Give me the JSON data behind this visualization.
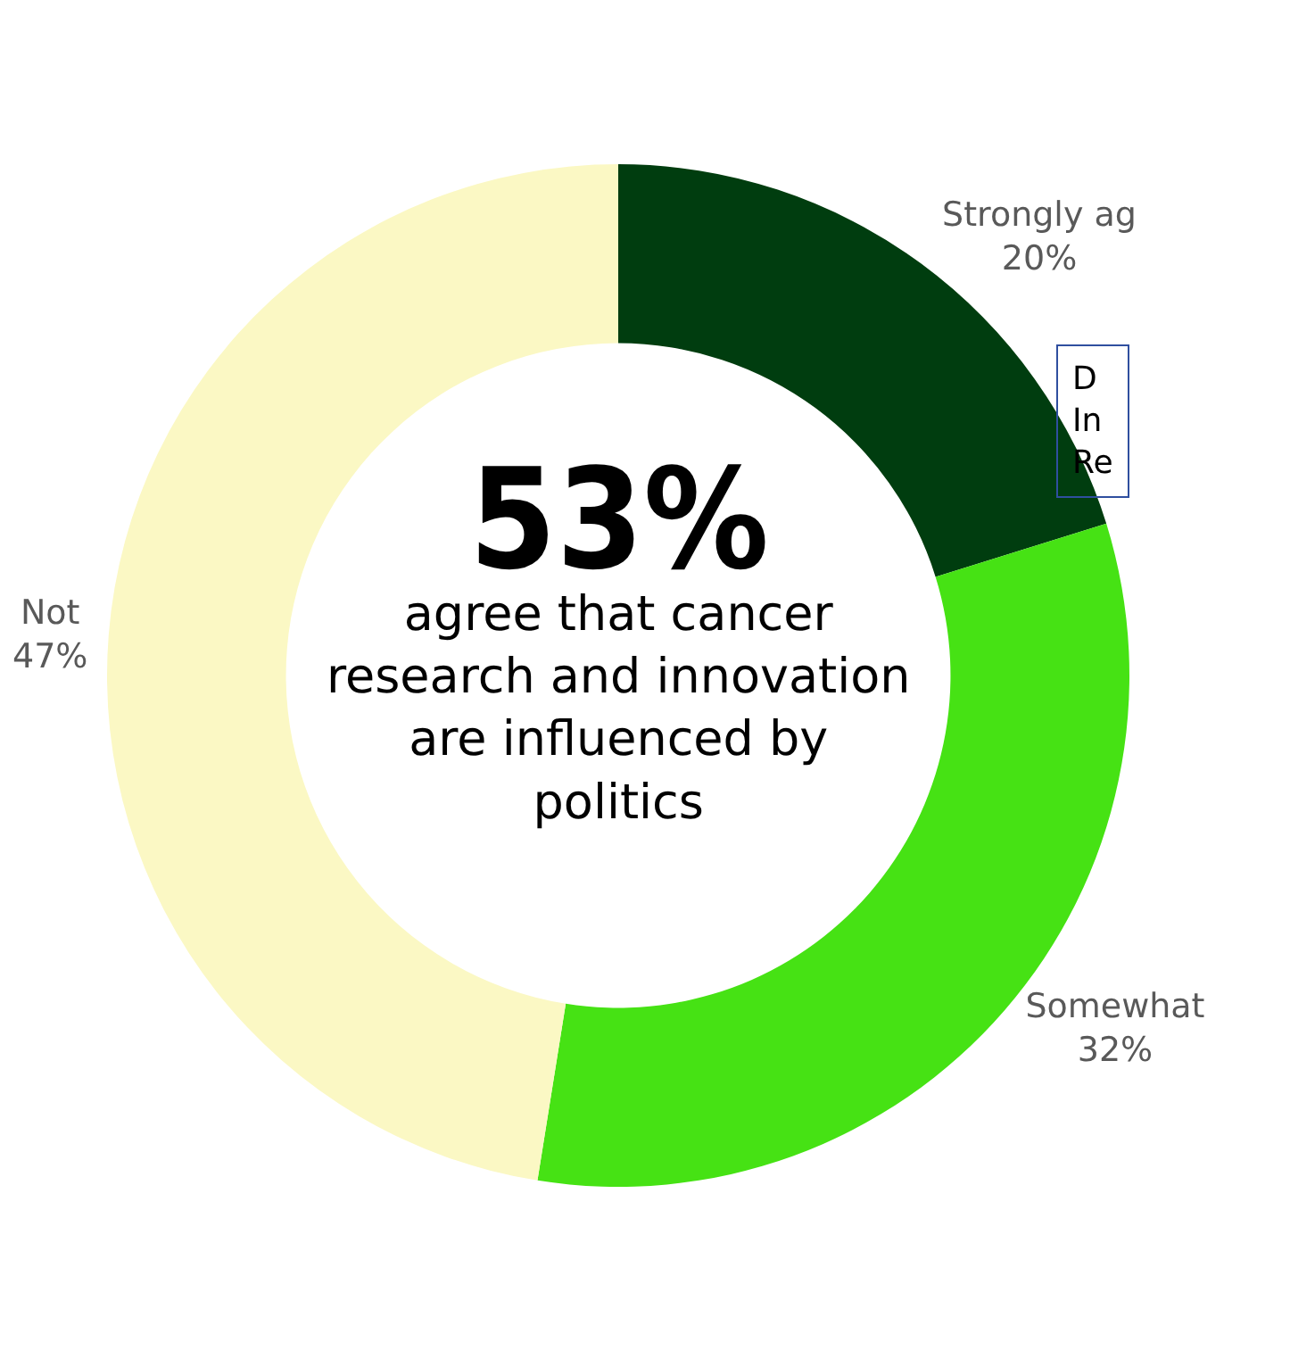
{
  "chart_data": {
    "type": "donut",
    "categories": [
      "Strongly ag",
      "Somewhat",
      "Not"
    ],
    "values": [
      20,
      32,
      47
    ],
    "value_labels": [
      "20%",
      "32%",
      "47%"
    ],
    "colors": [
      "#003d0f",
      "#46e214",
      "#fbf8c4"
    ],
    "annotations": [
      "53%",
      "agree that cancer research and innovation are influenced by politics",
      "D\nIn\nRe"
    ],
    "legend": false
  }
}
